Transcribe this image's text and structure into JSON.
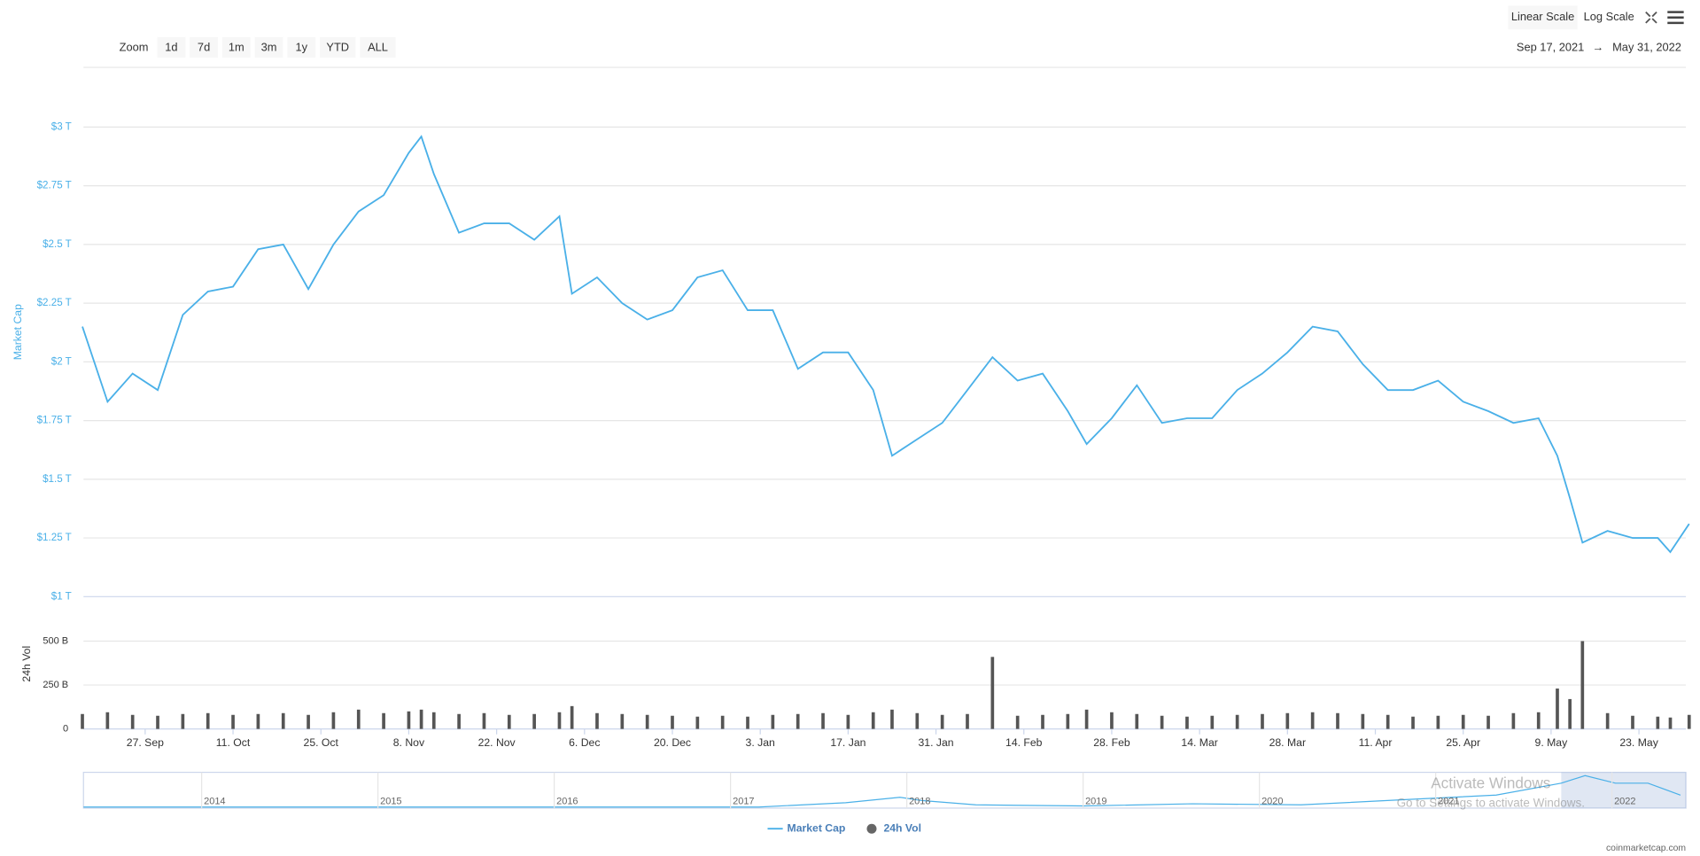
{
  "toolbar": {
    "zoom_label": "Zoom",
    "zoom_buttons": [
      "1d",
      "7d",
      "1m",
      "3m",
      "1y",
      "YTD",
      "ALL"
    ],
    "scales": [
      "Linear Scale",
      "Log Scale"
    ],
    "range_start": "Sep 17, 2021",
    "range_arrow": "→",
    "range_end": "May 31, 2022"
  },
  "chart_data": {
    "type": "line",
    "ylabel": "Market Cap",
    "y2label": "24h Vol",
    "x": [
      "2021-09-17",
      "2021-09-21",
      "2021-09-25",
      "2021-09-29",
      "2021-10-03",
      "2021-10-07",
      "2021-10-11",
      "2021-10-15",
      "2021-10-19",
      "2021-10-23",
      "2021-10-27",
      "2021-10-31",
      "2021-11-04",
      "2021-11-08",
      "2021-11-10",
      "2021-11-12",
      "2021-11-16",
      "2021-11-20",
      "2021-11-24",
      "2021-11-28",
      "2021-12-02",
      "2021-12-04",
      "2021-12-08",
      "2021-12-12",
      "2021-12-16",
      "2021-12-20",
      "2021-12-24",
      "2021-12-28",
      "2022-01-01",
      "2022-01-05",
      "2022-01-09",
      "2022-01-13",
      "2022-01-17",
      "2022-01-21",
      "2022-01-24",
      "2022-01-28",
      "2022-02-01",
      "2022-02-05",
      "2022-02-09",
      "2022-02-13",
      "2022-02-17",
      "2022-02-21",
      "2022-02-24",
      "2022-02-28",
      "2022-03-04",
      "2022-03-08",
      "2022-03-12",
      "2022-03-16",
      "2022-03-20",
      "2022-03-24",
      "2022-03-28",
      "2022-04-01",
      "2022-04-05",
      "2022-04-09",
      "2022-04-13",
      "2022-04-17",
      "2022-04-21",
      "2022-04-25",
      "2022-04-29",
      "2022-05-03",
      "2022-05-07",
      "2022-05-10",
      "2022-05-12",
      "2022-05-14",
      "2022-05-18",
      "2022-05-22",
      "2022-05-26",
      "2022-05-28",
      "2022-05-31"
    ],
    "series": [
      {
        "name": "Market Cap",
        "color": "#4ab0e8",
        "values": [
          2.15,
          1.83,
          1.95,
          1.88,
          2.2,
          2.3,
          2.32,
          2.48,
          2.5,
          2.31,
          2.5,
          2.64,
          2.71,
          2.89,
          2.96,
          2.8,
          2.55,
          2.59,
          2.59,
          2.52,
          2.62,
          2.29,
          2.36,
          2.25,
          2.18,
          2.22,
          2.36,
          2.39,
          2.22,
          2.22,
          1.97,
          2.04,
          2.04,
          1.88,
          1.6,
          1.67,
          1.74,
          1.88,
          2.02,
          1.92,
          1.95,
          1.79,
          1.65,
          1.76,
          1.9,
          1.74,
          1.76,
          1.76,
          1.88,
          1.95,
          2.04,
          2.15,
          2.13,
          1.99,
          1.88,
          1.88,
          1.92,
          1.83,
          1.79,
          1.74,
          1.76,
          1.6,
          1.42,
          1.23,
          1.28,
          1.25,
          1.25,
          1.19,
          1.31
        ]
      },
      {
        "name": "24h Vol",
        "type": "bar",
        "axis": "y2",
        "color": "#555",
        "values": [
          85,
          95,
          80,
          75,
          85,
          90,
          80,
          85,
          90,
          80,
          95,
          110,
          90,
          100,
          110,
          95,
          85,
          90,
          80,
          85,
          95,
          130,
          90,
          85,
          80,
          75,
          70,
          75,
          70,
          80,
          85,
          90,
          80,
          95,
          110,
          90,
          80,
          85,
          410,
          75,
          80,
          85,
          110,
          95,
          85,
          75,
          70,
          75,
          80,
          85,
          90,
          95,
          90,
          85,
          80,
          70,
          75,
          80,
          75,
          90,
          95,
          230,
          170,
          500,
          90,
          75,
          70,
          65,
          80
        ]
      }
    ],
    "xlim": [
      "2021-09-17",
      "2022-05-31"
    ],
    "xticks": [
      {
        "value": "2021-09-27",
        "label": "27. Sep"
      },
      {
        "value": "2021-10-11",
        "label": "11. Oct"
      },
      {
        "value": "2021-10-25",
        "label": "25. Oct"
      },
      {
        "value": "2021-11-08",
        "label": "8. Nov"
      },
      {
        "value": "2021-11-22",
        "label": "22. Nov"
      },
      {
        "value": "2021-12-06",
        "label": "6. Dec"
      },
      {
        "value": "2021-12-20",
        "label": "20. Dec"
      },
      {
        "value": "2022-01-03",
        "label": "3. Jan"
      },
      {
        "value": "2022-01-17",
        "label": "17. Jan"
      },
      {
        "value": "2022-01-31",
        "label": "31. Jan"
      },
      {
        "value": "2022-02-14",
        "label": "14. Feb"
      },
      {
        "value": "2022-02-28",
        "label": "28. Feb"
      },
      {
        "value": "2022-03-14",
        "label": "14. Mar"
      },
      {
        "value": "2022-03-28",
        "label": "28. Mar"
      },
      {
        "value": "2022-04-11",
        "label": "11. Apr"
      },
      {
        "value": "2022-04-25",
        "label": "25. Apr"
      },
      {
        "value": "2022-05-09",
        "label": "9. May"
      },
      {
        "value": "2022-05-23",
        "label": "23. May"
      }
    ],
    "ylim": [
      1,
      3.25
    ],
    "yticks": [
      {
        "value": 1,
        "label": "$1 T"
      },
      {
        "value": 1.25,
        "label": "$1.25 T"
      },
      {
        "value": 1.5,
        "label": "$1.5 T"
      },
      {
        "value": 1.75,
        "label": "$1.75 T"
      },
      {
        "value": 2,
        "label": "$2 T"
      },
      {
        "value": 2.25,
        "label": "$2.25 T"
      },
      {
        "value": 2.5,
        "label": "$2.5 T"
      },
      {
        "value": 2.75,
        "label": "$2.75 T"
      },
      {
        "value": 3,
        "label": "$3 T"
      }
    ],
    "y2lim": [
      0,
      500
    ],
    "y2ticks": [
      0,
      {
        "value": 250,
        "label": "250 B"
      },
      {
        "value": 500,
        "label": "500 B"
      }
    ],
    "grid": true
  },
  "navigator": {
    "years": [
      "2014",
      "2015",
      "2016",
      "2017",
      "2018",
      "2019",
      "2020",
      "2021",
      "2022"
    ]
  },
  "watermark": {
    "title": "Activate Windows",
    "subtitle": "Go to Settings to activate Windows."
  },
  "credit": "coinmarketcap.com"
}
